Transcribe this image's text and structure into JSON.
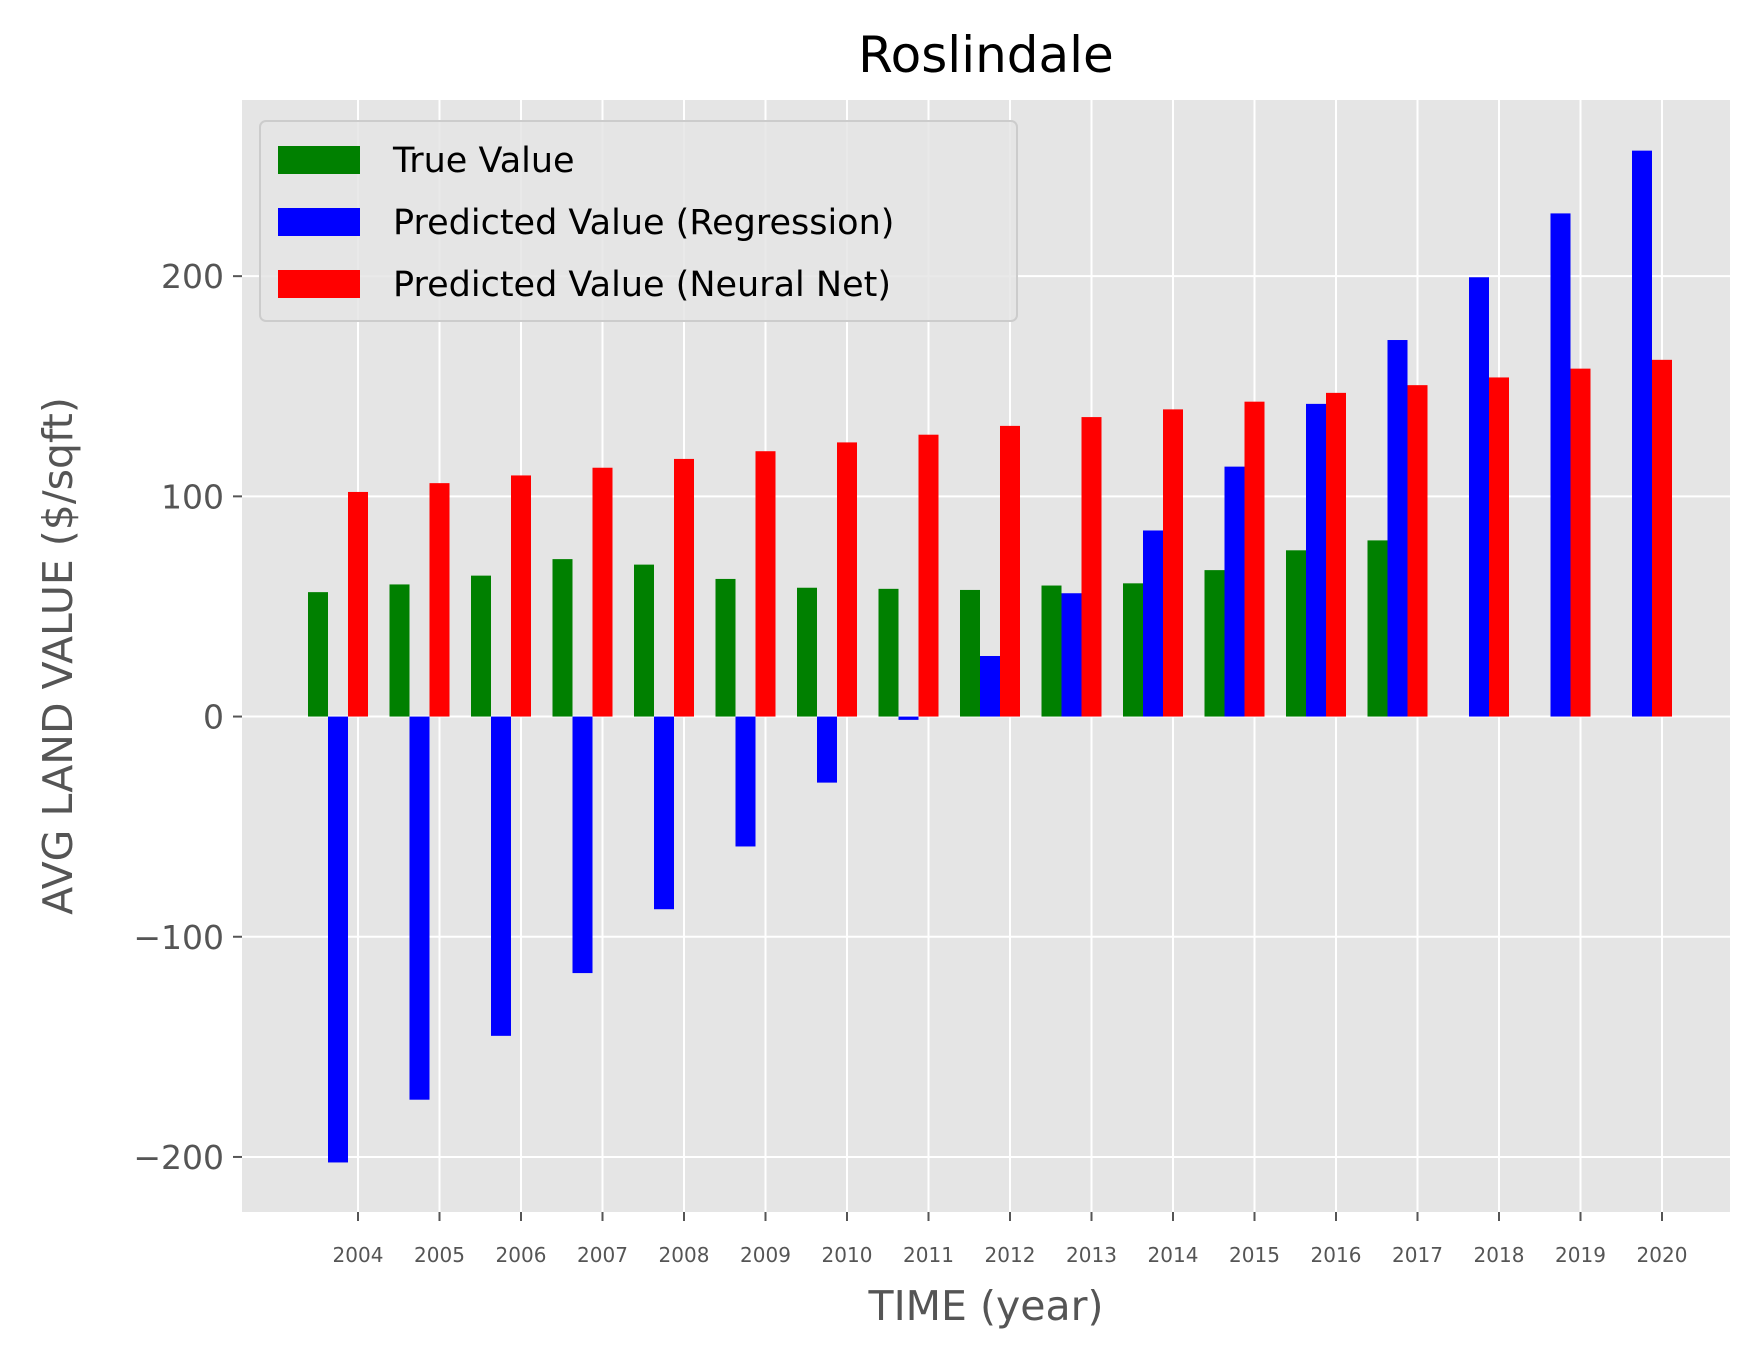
{
  "chart_data": {
    "type": "bar",
    "title": "Roslindale",
    "xlabel": "TIME (year)",
    "ylabel": "AVG LAND VALUE ($/sqft)",
    "ylim": [
      -225,
      280
    ],
    "yticks": [
      -200,
      -100,
      0,
      100,
      200
    ],
    "ytick_labels": [
      "−200",
      "−100",
      "0",
      "100",
      "200"
    ],
    "grid": true,
    "legend_position": "top-left",
    "categories": [
      "2004",
      "2005",
      "2006",
      "2007",
      "2008",
      "2009",
      "2010",
      "2011",
      "2012",
      "2013",
      "2014",
      "2015",
      "2016",
      "2017",
      "2018",
      "2019",
      "2020"
    ],
    "series": [
      {
        "name": "True Value",
        "color": "#008000",
        "values": [
          56.5,
          60,
          64,
          71.5,
          69,
          62.5,
          58.5,
          58,
          57.5,
          59.5,
          60.5,
          66.5,
          75.5,
          80,
          null,
          null,
          null
        ]
      },
      {
        "name": "Predicted Value (Regression)",
        "color": "#0000ff",
        "values": [
          -202.5,
          -174,
          -145,
          -116.5,
          -87.5,
          -59,
          -30,
          -1.5,
          27.5,
          56,
          84.5,
          113.5,
          142,
          171,
          199.5,
          228.5,
          257
        ]
      },
      {
        "name": "Predicted Value (Neural Net)",
        "color": "#ff0000",
        "values": [
          102,
          106,
          109.5,
          113,
          117,
          120.5,
          124.5,
          128,
          132,
          136,
          139.5,
          143,
          147,
          150.5,
          154,
          158,
          162
        ]
      }
    ]
  }
}
